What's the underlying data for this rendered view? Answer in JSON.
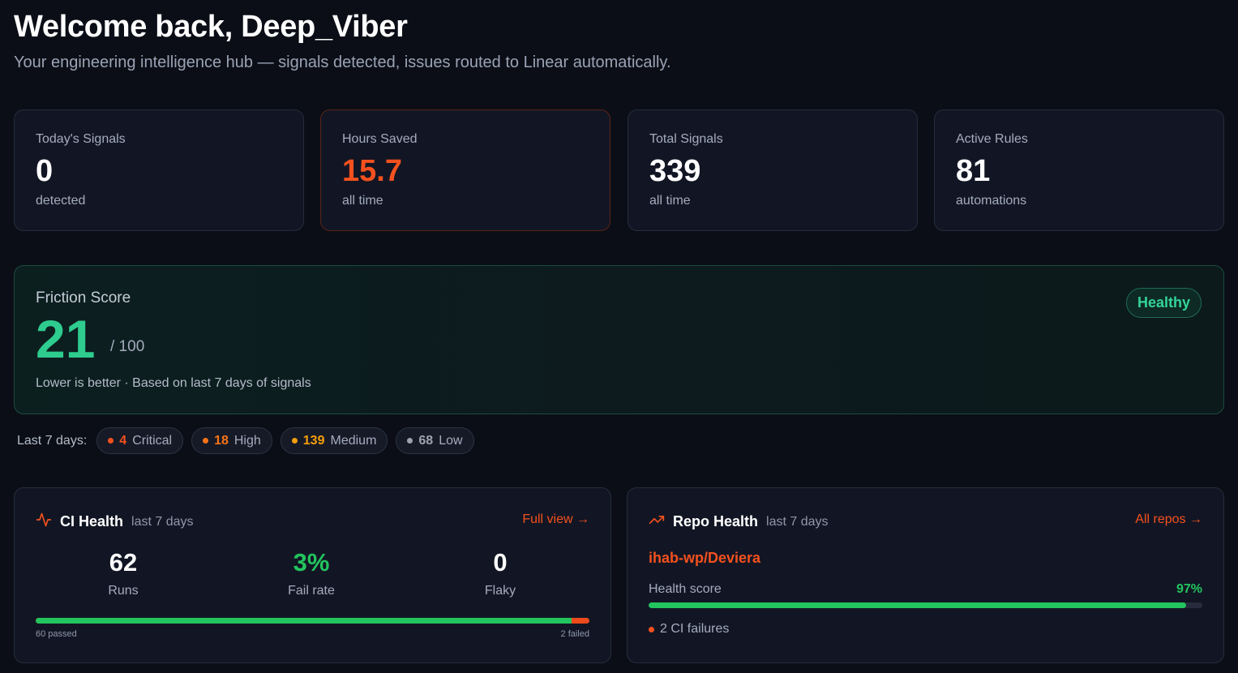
{
  "header": {
    "title": "Welcome back, Deep_Viber",
    "subtitle": "Your engineering intelligence hub — signals detected, issues routed to Linear automatically."
  },
  "stats": [
    {
      "label": "Today's Signals",
      "value": "0",
      "unit": "detected"
    },
    {
      "label": "Hours Saved",
      "value": "15.7",
      "unit": "all time"
    },
    {
      "label": "Total Signals",
      "value": "339",
      "unit": "all time"
    },
    {
      "label": "Active Rules",
      "value": "81",
      "unit": "automations"
    }
  ],
  "friction": {
    "label": "Friction Score",
    "score": "21",
    "max": "/ 100",
    "note": "Lower is better · Based on last 7 days of signals",
    "status": "Healthy"
  },
  "severity": {
    "label": "Last 7 days:",
    "items": [
      {
        "count": "4",
        "name": "Critical",
        "color": "#f4511e"
      },
      {
        "count": "18",
        "name": "High",
        "color": "#f97316"
      },
      {
        "count": "139",
        "name": "Medium",
        "color": "#f59e0b"
      },
      {
        "count": "68",
        "name": "Low",
        "color": "#9ca3af"
      }
    ]
  },
  "ci": {
    "icon": "activity-icon",
    "title": "CI Health",
    "period": "last 7 days",
    "link": "Full view →",
    "stats": [
      {
        "value": "62",
        "label": "Runs"
      },
      {
        "value": "3%",
        "label": "Fail rate"
      },
      {
        "value": "0",
        "label": "Flaky"
      }
    ],
    "passed_label": "60 passed",
    "failed_label": "2 failed",
    "passed": 60,
    "failed": 2
  },
  "repo": {
    "icon": "trending-up-icon",
    "title": "Repo Health",
    "period": "last 7 days",
    "link": "All repos →",
    "name": "ihab-wp/Deviera",
    "health_label": "Health score",
    "health_value": "97%",
    "health_pct": 97,
    "failures": "2 CI failures"
  },
  "colors": {
    "accent": "#f4511e",
    "green": "#22c55e",
    "friction_green": "#2ecc8e",
    "background": "#0b0e16",
    "card": "#121624"
  }
}
